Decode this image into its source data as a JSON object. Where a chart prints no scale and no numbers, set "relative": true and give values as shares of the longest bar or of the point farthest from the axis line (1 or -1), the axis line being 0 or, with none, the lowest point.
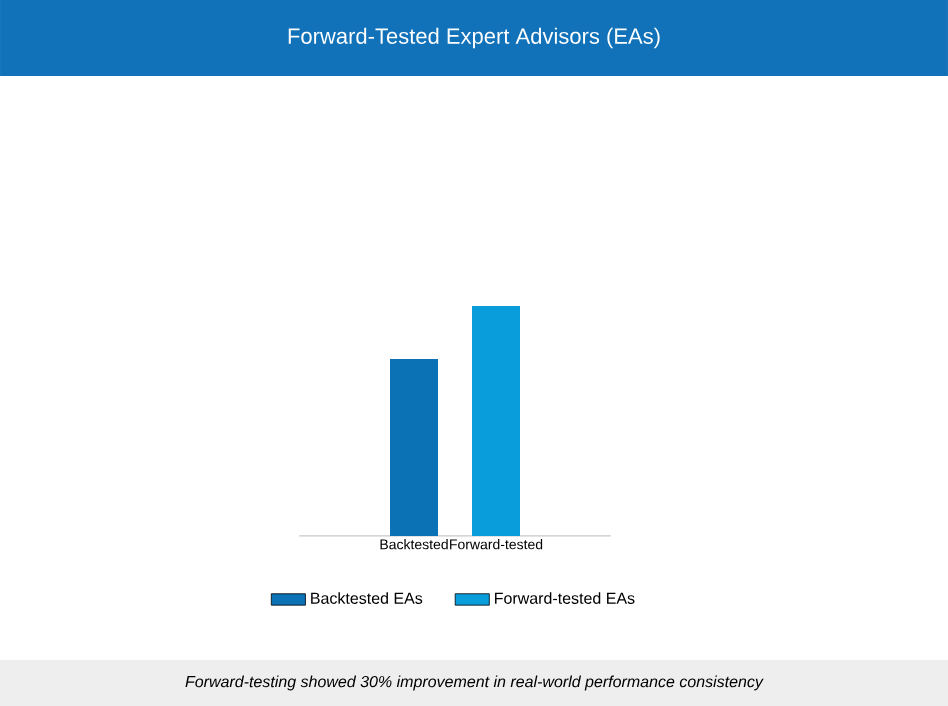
{
  "chart_data": {
    "type": "bar",
    "title": "Forward-Tested Expert Advisors (EAs)",
    "categories": [
      "Backtested",
      "Forward-tested"
    ],
    "series": [
      {
        "name": "Backtested EAs",
        "color": "#0b72b5",
        "values": [
          0.77,
          null
        ]
      },
      {
        "name": "Forward-tested EAs",
        "color": "#0a9ddb",
        "values": [
          null,
          1
        ]
      }
    ],
    "relative": true,
    "legend": "bottom",
    "annotations": [
      "Forward-testing showed 30% improvement in real-world performance consistency"
    ]
  }
}
